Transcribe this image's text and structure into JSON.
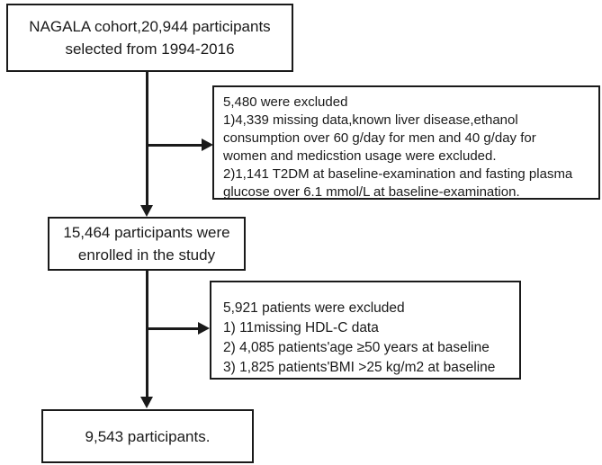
{
  "colors": {
    "border": "#1a1a1a",
    "text": "#1a1a1a",
    "background": "#ffffff"
  },
  "flowchart": {
    "cohort_box": {
      "lines": [
        "NAGALA cohort,20,944 participants",
        "selected from 1994-2016"
      ]
    },
    "exclusion1_box": {
      "lines": [
        "5,480 were excluded",
        "1)4,339 missing data,known liver disease,ethanol",
        "consumption over 60 g/day for men and 40 g/day for",
        "women and medicstion usage were excluded.",
        "2)1,141 T2DM at baseline-examination and fasting plasma",
        "glucose over 6.1 mmol/L at baseline-examination."
      ]
    },
    "enrolled_box": {
      "lines": [
        "15,464 participants were",
        "enrolled in the study"
      ]
    },
    "exclusion2_box": {
      "lines": [
        "5,921 patients were excluded",
        "1) 11missing HDL-C data",
        "2) 4,085 patients'age ≥50 years at baseline",
        "3) 1,825 patients'BMI >25 kg/m2 at baseline"
      ]
    },
    "final_box": {
      "lines": [
        "9,543 participants."
      ]
    }
  }
}
